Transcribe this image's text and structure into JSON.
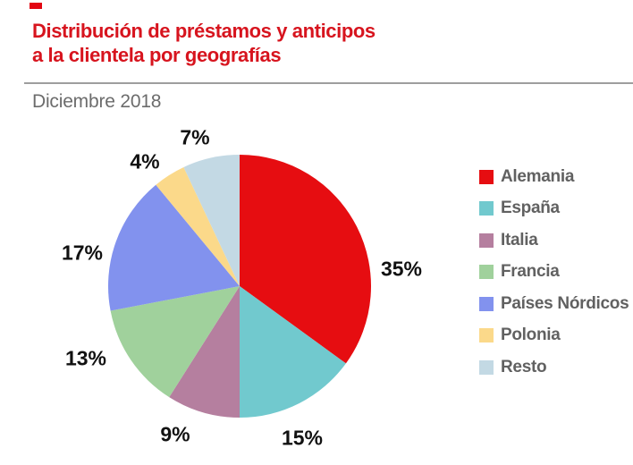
{
  "header": {
    "title_line1": "Distribución de préstamos y anticipos",
    "title_line2": "a la clientela por geografías",
    "subtitle": "Diciembre 2018",
    "title_color": "#d7141e",
    "subtitle_color": "#6c6c6c"
  },
  "decor": {
    "divider_color": "#9e9e9e",
    "corner_mark_color": "#e30613"
  },
  "chart_data": {
    "type": "pie",
    "title": "Distribución de préstamos y anticipos a la clientela por geografías",
    "subtitle": "Diciembre 2018",
    "start_angle_deg": -90,
    "direction": "clockwise",
    "legend_position": "right",
    "categories": [
      "Alemania",
      "España",
      "Italia",
      "Francia",
      "Países Nórdicos",
      "Polonia",
      "Resto"
    ],
    "values": [
      35,
      15,
      9,
      13,
      17,
      4,
      7
    ],
    "data_labels": [
      "35%",
      "15%",
      "9%",
      "13%",
      "17%",
      "4%",
      "7%"
    ],
    "slice_colors": [
      "#e60d11",
      "#71c9ce",
      "#b57f9f",
      "#a0d19c",
      "#8292ee",
      "#fbd98a",
      "#c3d9e4"
    ],
    "legend_text_color": "#616161",
    "label_color": "#111111"
  }
}
